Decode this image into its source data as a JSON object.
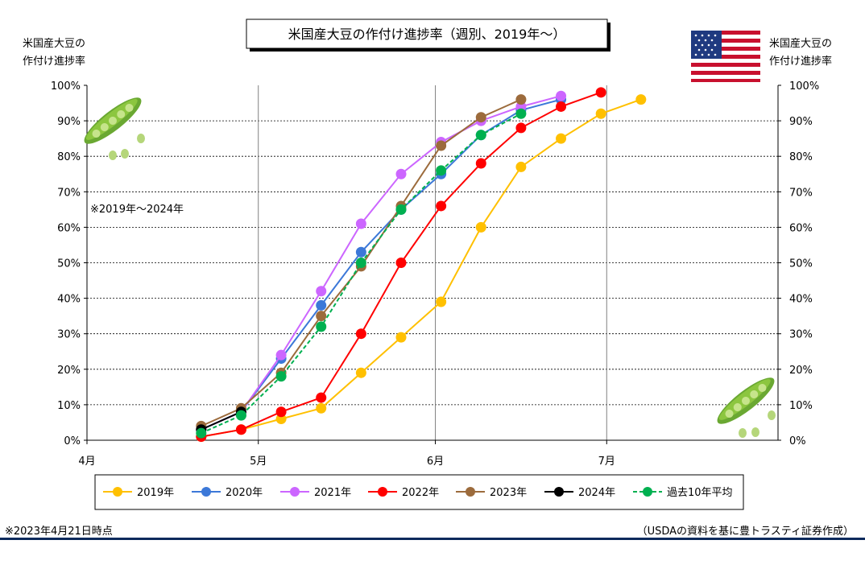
{
  "chart_data": {
    "type": "line",
    "title": "米国産大豆の作付け進捗率（週別、2019年～）",
    "ylabel_left": [
      "米国産大豆の",
      "作付け進捗率"
    ],
    "ylabel_right": [
      "米国産大豆の",
      "作付け進捗率"
    ],
    "note_range": "※2019年～2024年",
    "x_ticks": [
      "4月",
      "5月",
      "6月",
      "7月"
    ],
    "x_tick_dates": [
      "04-01",
      "05-01",
      "06-01",
      "07-01"
    ],
    "xlim": [
      "04-01",
      "07-31"
    ],
    "y_ticks": [
      "0%",
      "10%",
      "20%",
      "30%",
      "40%",
      "50%",
      "60%",
      "70%",
      "80%",
      "90%",
      "100%"
    ],
    "ylim": [
      0,
      100
    ],
    "grid": true,
    "legend_position": "bottom",
    "series": [
      {
        "name": "2019年",
        "color": "#ffc000",
        "dashed": false,
        "x": [
          "04-21",
          "04-28",
          "05-05",
          "05-12",
          "05-19",
          "05-26",
          "06-02",
          "06-09",
          "06-16",
          "06-23",
          "06-30",
          "07-07"
        ],
        "values": [
          1,
          3,
          6,
          9,
          19,
          29,
          39,
          60,
          77,
          85,
          92,
          96
        ]
      },
      {
        "name": "2020年",
        "color": "#3c78d8",
        "dashed": false,
        "x": [
          "04-21",
          "04-28",
          "05-05",
          "05-12",
          "05-19",
          "05-26",
          "06-02",
          "06-09",
          "06-16",
          "06-23"
        ],
        "values": [
          3,
          8,
          23,
          38,
          53,
          65,
          75,
          86,
          93,
          96
        ]
      },
      {
        "name": "2021年",
        "color": "#cc66ff",
        "dashed": false,
        "x": [
          "04-21",
          "04-28",
          "05-05",
          "05-12",
          "05-19",
          "05-26",
          "06-02",
          "06-09",
          "06-16",
          "06-23"
        ],
        "values": [
          3,
          8,
          24,
          42,
          61,
          75,
          84,
          90,
          94,
          97
        ]
      },
      {
        "name": "2022年",
        "color": "#ff0000",
        "dashed": false,
        "x": [
          "04-21",
          "04-28",
          "05-05",
          "05-12",
          "05-19",
          "05-26",
          "06-02",
          "06-09",
          "06-16",
          "06-23",
          "06-30"
        ],
        "values": [
          1,
          3,
          8,
          12,
          30,
          50,
          66,
          78,
          88,
          94,
          98
        ]
      },
      {
        "name": "2023年",
        "color": "#9c6b3c",
        "dashed": false,
        "x": [
          "04-21",
          "04-28",
          "05-05",
          "05-12",
          "05-19",
          "05-26",
          "06-02",
          "06-09",
          "06-16"
        ],
        "values": [
          4,
          9,
          19,
          35,
          49,
          66,
          83,
          91,
          96
        ]
      },
      {
        "name": "2024年",
        "color": "#000000",
        "dashed": false,
        "x": [
          "04-21",
          "04-28"
        ],
        "values": [
          3,
          8
        ]
      },
      {
        "name": "過去10年平均",
        "color": "#00b050",
        "dashed": true,
        "x": [
          "04-21",
          "04-28",
          "05-05",
          "05-12",
          "05-19",
          "05-26",
          "06-02",
          "06-09",
          "06-16"
        ],
        "values": [
          2,
          7,
          18,
          32,
          50,
          65,
          76,
          86,
          92
        ]
      }
    ],
    "footnote_left": "※2023年4月21日時点",
    "footnote_right": "（USDAの資料を基に豊トラスティ証券作成）"
  },
  "colors": {
    "divider": "#0b2a5c",
    "grid_solid": "#808080",
    "grid_dashed": "#000000"
  },
  "icons": [
    "us-flag-icon",
    "soybean-pod-icon"
  ]
}
